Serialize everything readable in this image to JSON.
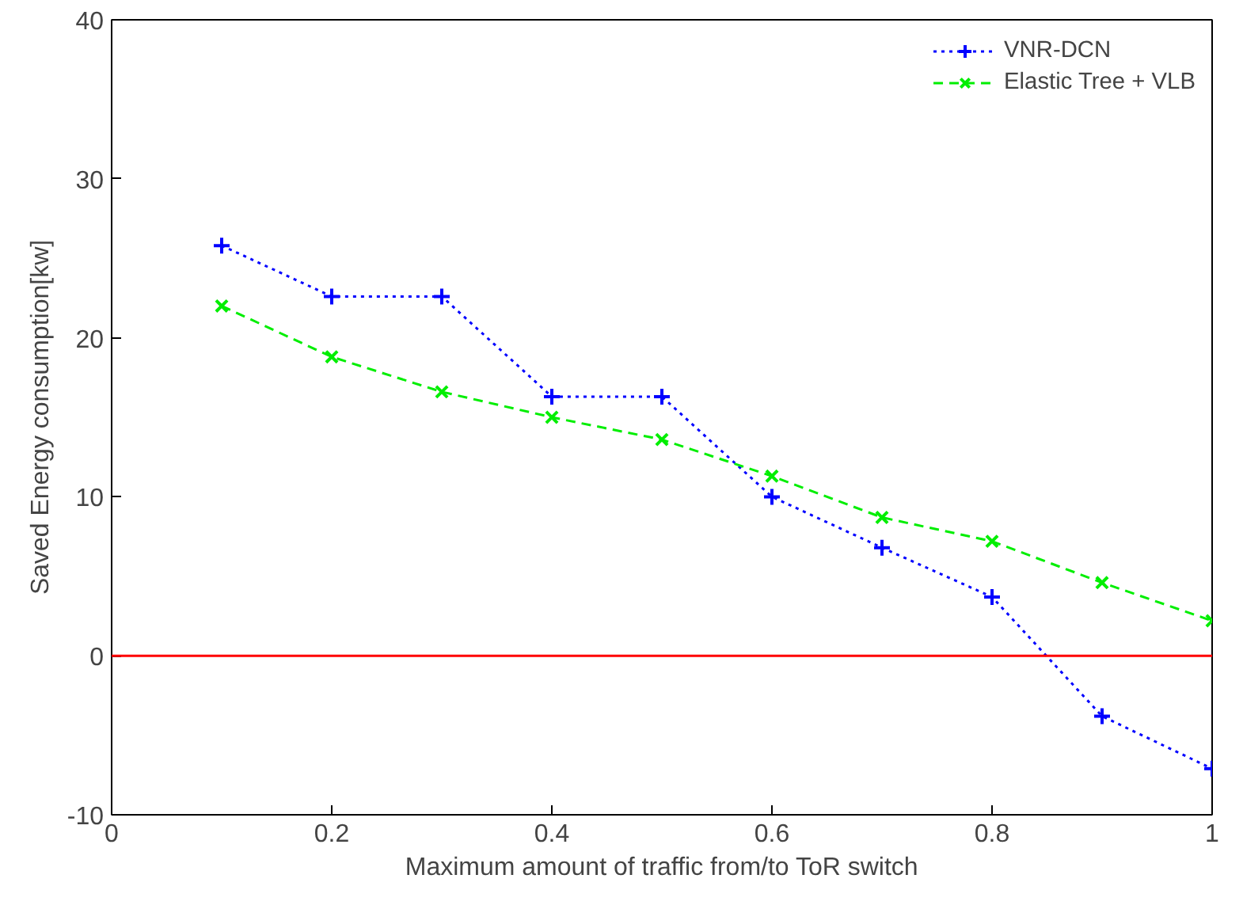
{
  "chart_data": {
    "type": "line",
    "xlabel": "Maximum amount of traffic from/to ToR switch",
    "ylabel": "Saved Energy consumption[kw]",
    "x": [
      0.1,
      0.2,
      0.3,
      0.4,
      0.5,
      0.6,
      0.7,
      0.8,
      0.9,
      1.0
    ],
    "series": [
      {
        "name": "VNR-DCN",
        "color": "#0000ff",
        "marker": "cross",
        "line_style": "dotted",
        "values": [
          25.8,
          22.6,
          22.6,
          16.3,
          16.3,
          10.0,
          6.8,
          3.7,
          -3.8,
          -7.1
        ]
      },
      {
        "name": "Elastic Tree + VLB",
        "color": "#00ee00",
        "marker": "x",
        "line_style": "dashed",
        "values": [
          22.0,
          18.8,
          16.6,
          15.0,
          13.6,
          11.3,
          8.7,
          7.2,
          4.6,
          2.2
        ]
      }
    ],
    "xlim": [
      0,
      1
    ],
    "xticks": [
      0,
      0.2,
      0.4,
      0.6,
      0.8,
      1
    ],
    "ylim": [
      -10,
      40
    ],
    "yticks": [
      -10,
      0,
      10,
      20,
      30,
      40
    ],
    "ref_lines": [
      {
        "axis": "y",
        "value": 0,
        "color": "#ff0000"
      }
    ],
    "grid": false,
    "legend": "top right"
  }
}
